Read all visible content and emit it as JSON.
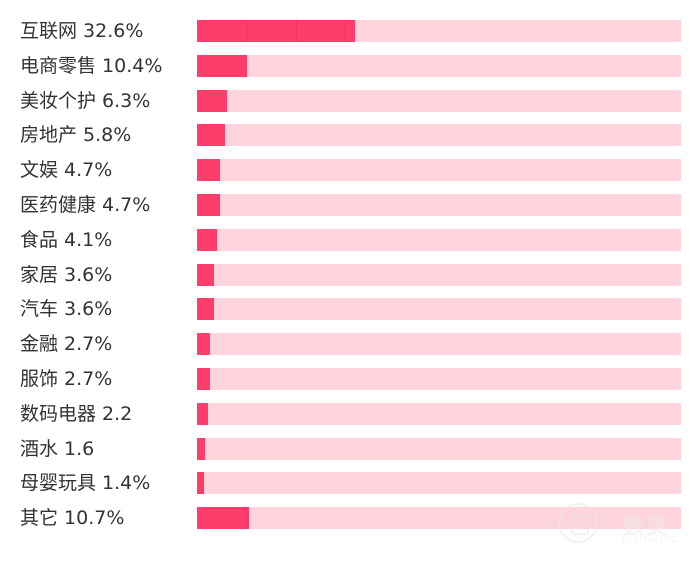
{
  "chart_data": {
    "type": "bar",
    "orientation": "horizontal",
    "title": "",
    "xlabel": "",
    "ylabel": "",
    "xlim": [
      0,
      100
    ],
    "grid": false,
    "categories": [
      "互联网 32.6%",
      "电商零售 10.4%",
      "美妆个护 6.3%",
      "房地产 5.8%",
      "文娱 4.7%",
      "医药健康 4.7%",
      "食品 4.1%",
      "家居 3.6%",
      "汽车 3.6%",
      "金融 2.7%",
      "服饰 2.7%",
      "数码电器 2.2",
      "酒水 1.6",
      "母婴玩具 1.4%",
      "其它 10.7%"
    ],
    "values": [
      32.6,
      10.4,
      6.3,
      5.8,
      4.7,
      4.7,
      4.1,
      3.6,
      3.6,
      2.7,
      2.7,
      2.2,
      1.6,
      1.4,
      10.7
    ],
    "colors": {
      "bar": "#ff3d6b",
      "track": "#ffd4dc",
      "label": "#333333"
    }
  },
  "watermark": {
    "icon": "logo-circle-icon",
    "text": "数英",
    "sub": "DIGITALING"
  }
}
